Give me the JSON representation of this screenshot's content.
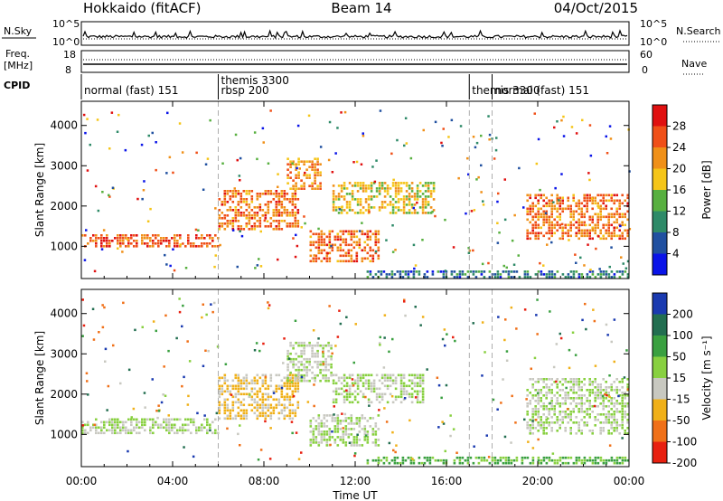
{
  "header": {
    "station": "Hokkaido (fitACF)",
    "beam": "Beam 14",
    "date": "04/Oct/2015"
  },
  "strip": {
    "nsky_label": "N.Sky",
    "nsearch_label": "N.Search",
    "nave_label": "Nave",
    "freq_label_top": "Freq.",
    "freq_label_bottom": "[MHz]",
    "cpid_label": "CPID",
    "noise_left_ticks": [
      "10^5",
      "10^0"
    ],
    "noise_right_ticks": [
      "10^5",
      "10^0"
    ],
    "freq_ticks": [
      "18",
      "8"
    ],
    "nave_ticks": [
      "60",
      "0"
    ]
  },
  "cpid_segments": [
    {
      "start_hour": 0.0,
      "lines": [
        "normal (fast) 151"
      ]
    },
    {
      "start_hour": 6.0,
      "lines": [
        "themis 3300",
        "rbsp 200"
      ]
    },
    {
      "start_hour": 17.0,
      "lines": [
        "themis 3300"
      ]
    },
    {
      "start_hour": 18.0,
      "lines": [
        "normal (fast) 151"
      ]
    }
  ],
  "chart_data": [
    {
      "type": "heatmap",
      "quantity": "power",
      "xlabel": "",
      "ylabel": "Slant Range [km]",
      "xlim": [
        0,
        24
      ],
      "ylim": [
        200,
        4600
      ],
      "yticks": [
        1000,
        2000,
        3000,
        4000
      ],
      "colorbar_label": "Power [dB]",
      "colorbar_ticks": [
        "28",
        "24",
        "20",
        "16",
        "12",
        "8",
        "4"
      ],
      "colormap": [
        "#0a14e8",
        "#2050a0",
        "#2e8a68",
        "#58b040",
        "#f5c518",
        "#f09018",
        "#f05018",
        "#e01010"
      ],
      "echo_bands": [
        {
          "t0": 0.0,
          "t1": 6.0,
          "r0": 1000,
          "r1": 1300,
          "value": 26
        },
        {
          "t0": 6.0,
          "t1": 9.5,
          "r0": 1400,
          "r1": 2400,
          "value": 24
        },
        {
          "t0": 9.0,
          "t1": 10.5,
          "r0": 2400,
          "r1": 3200,
          "value": 22
        },
        {
          "t0": 10.0,
          "t1": 13.0,
          "r0": 600,
          "r1": 1400,
          "value": 24
        },
        {
          "t0": 11.0,
          "t1": 15.5,
          "r0": 1800,
          "r1": 2600,
          "value": 18
        },
        {
          "t0": 12.5,
          "t1": 24.0,
          "r0": 250,
          "r1": 400,
          "value": 8
        },
        {
          "t0": 19.5,
          "t1": 24.0,
          "r0": 1200,
          "r1": 2300,
          "value": 24
        }
      ]
    },
    {
      "type": "heatmap",
      "quantity": "velocity",
      "xlabel": "Time UT",
      "ylabel": "Slant Range [km]",
      "xlim": [
        0,
        24
      ],
      "ylim": [
        200,
        4600
      ],
      "xticks": [
        "00:00",
        "04:00",
        "08:00",
        "12:00",
        "16:00",
        "20:00",
        "00:00"
      ],
      "yticks": [
        1000,
        2000,
        3000,
        4000
      ],
      "colorbar_label": "Velocity [m s⁻¹]",
      "colorbar_ticks": [
        "200",
        "100",
        "50",
        "15",
        "-15",
        "-50",
        "-100",
        "-200"
      ],
      "colormap": [
        "#1a3ab0",
        "#226e50",
        "#3aa040",
        "#88d040",
        "#c8c8c0",
        "#f0b018",
        "#f07018",
        "#e82010"
      ],
      "echo_bands": [
        {
          "t0": 0.0,
          "t1": 6.0,
          "r0": 1000,
          "r1": 1400,
          "value": 0
        },
        {
          "t0": 6.0,
          "t1": 9.5,
          "r0": 1400,
          "r1": 2500,
          "value": -40
        },
        {
          "t0": 9.0,
          "t1": 11.0,
          "r0": 2300,
          "r1": 3300,
          "value": 0
        },
        {
          "t0": 10.0,
          "t1": 13.0,
          "r0": 700,
          "r1": 1500,
          "value": 0
        },
        {
          "t0": 11.0,
          "t1": 15.0,
          "r0": 1800,
          "r1": 2500,
          "value": 0
        },
        {
          "t0": 12.5,
          "t1": 24.0,
          "r0": 250,
          "r1": 450,
          "value": 40
        },
        {
          "t0": 19.5,
          "t1": 24.0,
          "r0": 1000,
          "r1": 2400,
          "value": 0
        }
      ]
    }
  ]
}
